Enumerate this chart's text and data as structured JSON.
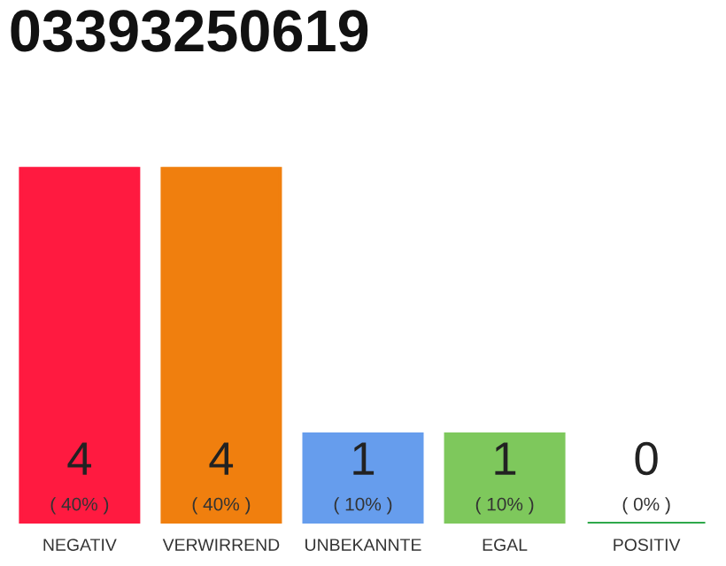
{
  "chart_data": {
    "type": "bar",
    "title": "03393250619",
    "categories": [
      "NEGATIV",
      "VERWIRREND",
      "UNBEKANNTE",
      "EGAL",
      "POSITIV"
    ],
    "values": [
      4,
      4,
      1,
      1,
      0
    ],
    "colors": [
      "#ff1a40",
      "#f07f0e",
      "#669ded",
      "#7ec85c",
      "#2ea84a"
    ],
    "data_labels": true,
    "annotations": [
      {
        "text": "( 40% )",
        "x": "NEGATIV",
        "y": 0
      },
      {
        "text": "( 40% )",
        "x": "VERWIRREND",
        "y": 0
      },
      {
        "text": "( 10% )",
        "x": "UNBEKANNTE",
        "y": 0
      },
      {
        "text": "( 10% )",
        "x": "EGAL",
        "y": 0
      },
      {
        "text": "( 0% )",
        "x": "POSITIV",
        "y": 0
      }
    ],
    "grid": false,
    "legend": false
  }
}
